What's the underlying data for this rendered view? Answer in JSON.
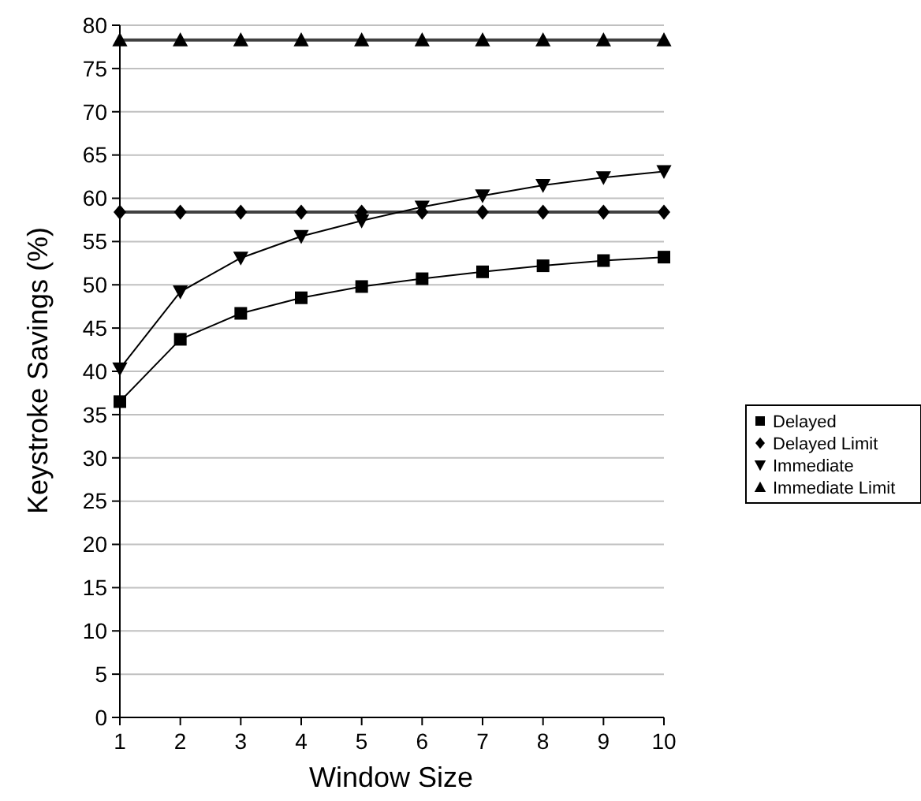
{
  "chart_data": {
    "type": "line",
    "xlabel": "Window Size",
    "ylabel": "Keystroke Savings (%)",
    "categories": [
      "1",
      "2",
      "3",
      "4",
      "5",
      "6",
      "7",
      "8",
      "9",
      "10"
    ],
    "ylim": [
      0,
      80
    ],
    "yticks": [
      0,
      5,
      10,
      15,
      20,
      25,
      30,
      35,
      40,
      45,
      50,
      55,
      60,
      65,
      70,
      75,
      80
    ],
    "grid": "y",
    "legend": "right",
    "series": [
      {
        "name": "Delayed",
        "color": "#000000",
        "marker": "square",
        "values": [
          36.5,
          43.7,
          46.7,
          48.5,
          49.8,
          50.7,
          51.5,
          52.2,
          52.8,
          53.2
        ]
      },
      {
        "name": "Delayed Limit",
        "color": "#000000",
        "marker": "diamond",
        "values": [
          58.4,
          58.4,
          58.4,
          58.4,
          58.4,
          58.4,
          58.4,
          58.4,
          58.4,
          58.4
        ]
      },
      {
        "name": "Immediate",
        "color": "#000000",
        "marker": "triangle-down",
        "values": [
          40.3,
          49.2,
          53.1,
          55.6,
          57.4,
          59.0,
          60.3,
          61.5,
          62.4,
          63.1
        ]
      },
      {
        "name": "Immediate Limit",
        "color": "#000000",
        "marker": "triangle",
        "values": [
          78.3,
          78.3,
          78.3,
          78.3,
          78.3,
          78.3,
          78.3,
          78.3,
          78.3,
          78.3
        ]
      }
    ]
  }
}
